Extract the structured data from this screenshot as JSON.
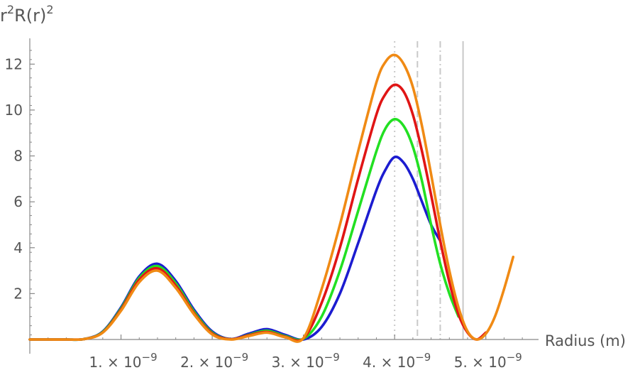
{
  "chart_data": {
    "type": "line",
    "title": "",
    "ylabel": {
      "base": "r",
      "exp1": "2",
      "mid": "R(r)",
      "exp2": "2"
    },
    "xlabel": "Radius  (m)",
    "xlim": [
      0.0,
      5.5e-09
    ],
    "ylim": [
      0,
      13
    ],
    "x_ticks": [
      {
        "value": 1e-09,
        "mantissa": "1.",
        "exp": "−9"
      },
      {
        "value": 2e-09,
        "mantissa": "2.",
        "exp": "−9"
      },
      {
        "value": 3e-09,
        "mantissa": "3.",
        "exp": "−9"
      },
      {
        "value": 4e-09,
        "mantissa": "4.",
        "exp": "−9"
      },
      {
        "value": 5e-09,
        "mantissa": "5.",
        "exp": "−9"
      }
    ],
    "y_ticks": [
      {
        "value": 2,
        "label": "2"
      },
      {
        "value": 4,
        "label": "4"
      },
      {
        "value": 6,
        "label": "6"
      },
      {
        "value": 8,
        "label": "8"
      },
      {
        "value": 10,
        "label": "10"
      },
      {
        "value": 12,
        "label": "12"
      }
    ],
    "vertical_lines": [
      {
        "x": 4e-09,
        "style": "dotted",
        "color": "#c8c8c8"
      },
      {
        "x": 4.25e-09,
        "style": "dashed",
        "color": "#c8c8c8"
      },
      {
        "x": 4.5e-09,
        "style": "dashdot",
        "color": "#c8c8c8"
      },
      {
        "x": 4.75e-09,
        "style": "solid",
        "color": "#c8c8c8"
      }
    ],
    "series": [
      {
        "color": "#1c1cd0",
        "x": [
          0,
          2e-10,
          4e-10,
          6e-10,
          8e-10,
          1e-09,
          1.2e-09,
          1.4e-09,
          1.6e-09,
          1.8e-09,
          2e-09,
          2.2e-09,
          2.4e-09,
          2.6e-09,
          2.8e-09,
          3e-09,
          3.2e-09,
          3.4e-09,
          3.6e-09,
          3.8e-09,
          3.9e-09,
          4e-09,
          4.1e-09,
          4.2e-09,
          4.3e-09,
          4.4e-09,
          4.5e-09
        ],
        "y": [
          0,
          0,
          0,
          0.02,
          0.35,
          1.4,
          2.75,
          3.3,
          2.55,
          1.3,
          0.35,
          0.02,
          0.25,
          0.45,
          0.2,
          0.0,
          0.55,
          2.0,
          4.2,
          6.5,
          7.4,
          7.95,
          7.7,
          7.0,
          6.0,
          5.0,
          4.3
        ]
      },
      {
        "color": "#22e022",
        "x": [
          0,
          2e-10,
          4e-10,
          6e-10,
          8e-10,
          1e-09,
          1.2e-09,
          1.4e-09,
          1.6e-09,
          1.8e-09,
          2e-09,
          2.2e-09,
          2.4e-09,
          2.6e-09,
          2.8e-09,
          3e-09,
          3.2e-09,
          3.4e-09,
          3.6e-09,
          3.8e-09,
          3.9e-09,
          4e-09,
          4.1e-09,
          4.2e-09,
          4.3e-09,
          4.4e-09,
          4.5e-09,
          4.6e-09,
          4.7e-09
        ],
        "y": [
          0,
          0,
          0,
          0.02,
          0.33,
          1.35,
          2.68,
          3.2,
          2.45,
          1.22,
          0.3,
          0.01,
          0.2,
          0.38,
          0.15,
          0.03,
          1.0,
          3.0,
          5.6,
          8.2,
          9.2,
          9.6,
          9.3,
          8.4,
          6.9,
          5.0,
          3.3,
          2.0,
          1.0
        ]
      },
      {
        "color": "#e01515",
        "x": [
          0,
          2e-10,
          4e-10,
          6e-10,
          8e-10,
          1e-09,
          1.2e-09,
          1.4e-09,
          1.6e-09,
          1.8e-09,
          2e-09,
          2.2e-09,
          2.4e-09,
          2.6e-09,
          2.8e-09,
          3e-09,
          3.2e-09,
          3.4e-09,
          3.6e-09,
          3.8e-09,
          3.9e-09,
          4e-09,
          4.1e-09,
          4.2e-09,
          4.3e-09,
          4.4e-09,
          4.5e-09,
          4.6e-09,
          4.7e-09,
          4.8e-09,
          4.9e-09,
          5e-09
        ],
        "y": [
          0,
          0,
          0,
          0.02,
          0.31,
          1.3,
          2.6,
          3.1,
          2.35,
          1.15,
          0.26,
          0.01,
          0.18,
          0.33,
          0.12,
          0.05,
          1.6,
          4.0,
          7.0,
          9.8,
          10.7,
          11.1,
          10.8,
          9.8,
          8.2,
          6.3,
          4.3,
          2.5,
          1.1,
          0.3,
          0.0,
          0.3
        ]
      },
      {
        "color": "#f08a14",
        "x": [
          0,
          2e-10,
          4e-10,
          6e-10,
          8e-10,
          1e-09,
          1.2e-09,
          1.4e-09,
          1.6e-09,
          1.8e-09,
          2e-09,
          2.2e-09,
          2.4e-09,
          2.6e-09,
          2.8e-09,
          3e-09,
          3.2e-09,
          3.4e-09,
          3.6e-09,
          3.8e-09,
          3.9e-09,
          4e-09,
          4.1e-09,
          4.2e-09,
          4.3e-09,
          4.4e-09,
          4.5e-09,
          4.6e-09,
          4.7e-09,
          4.8e-09,
          4.9e-09,
          5e-09,
          5.1e-09,
          5.2e-09,
          5.3e-09
        ],
        "y": [
          0,
          0,
          0,
          0.02,
          0.3,
          1.25,
          2.5,
          3.0,
          2.25,
          1.1,
          0.22,
          0.0,
          0.15,
          0.3,
          0.1,
          0.06,
          2.2,
          5.0,
          8.2,
          11.2,
          12.1,
          12.4,
          12.0,
          11.0,
          9.3,
          7.2,
          5.0,
          3.0,
          1.4,
          0.35,
          0.0,
          0.25,
          1.0,
          2.2,
          3.6
        ]
      }
    ]
  }
}
